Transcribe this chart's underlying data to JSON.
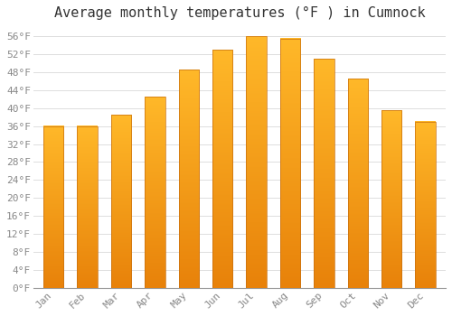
{
  "title": "Average monthly temperatures (°F ) in Cumnock",
  "months": [
    "Jan",
    "Feb",
    "Mar",
    "Apr",
    "May",
    "Jun",
    "Jul",
    "Aug",
    "Sep",
    "Oct",
    "Nov",
    "Dec"
  ],
  "values": [
    36,
    36,
    38.5,
    42.5,
    48.5,
    53,
    56,
    55.5,
    51,
    46.5,
    39.5,
    37
  ],
  "bar_color_bottom": "#E8820A",
  "bar_color_top": "#FFB829",
  "bar_border_color": "#C87010",
  "background_color": "#FFFFFF",
  "grid_color": "#DDDDDD",
  "tick_label_color": "#888888",
  "title_color": "#333333",
  "ylim": [
    0,
    58
  ],
  "ytick_step": 4,
  "title_fontsize": 11,
  "tick_fontsize": 8,
  "font_family": "monospace",
  "bar_width": 0.6
}
